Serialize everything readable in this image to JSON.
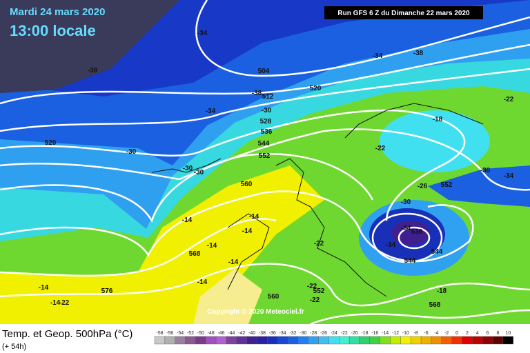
{
  "header": {
    "date": "Mardi 24 mars 2020",
    "time": "13:00 locale"
  },
  "run": "Run GFS 6 Z du Dimanche 22 mars 2020",
  "copyright": "Copyright © 2020 Meteociel.fr",
  "legend": {
    "title": "Temp. et Geop. 500hPa (°C)",
    "lead": "(+ 54h)",
    "values": [
      -58,
      -56,
      -54,
      -52,
      -50,
      -48,
      -46,
      -44,
      -42,
      -40,
      -38,
      -36,
      -34,
      -32,
      -30,
      -28,
      -26,
      -24,
      -22,
      -20,
      -18,
      -16,
      -14,
      -12,
      -10,
      -8,
      -6,
      -4,
      -2,
      0,
      2,
      4,
      6,
      8,
      10
    ],
    "colors": [
      "#c8c8c8",
      "#b0b0b0",
      "#9a80a0",
      "#8a5a90",
      "#7a3c88",
      "#a050c0",
      "#b060d0",
      "#8040a0",
      "#6030a0",
      "#402090",
      "#2820a0",
      "#1830b8",
      "#1848d0",
      "#1a60e0",
      "#2080f0",
      "#30a0f0",
      "#40c0f0",
      "#40e0f0",
      "#40f0d0",
      "#30e0a0",
      "#30d070",
      "#40d040",
      "#80e020",
      "#c0f000",
      "#f0f000",
      "#f0d000",
      "#f0b000",
      "#f09000",
      "#f06000",
      "#f03000",
      "#e00000",
      "#c00000",
      "#900000",
      "#600000",
      "#000000"
    ]
  },
  "contour_labels": [
    "-34",
    "-38",
    "504",
    "-34",
    "-38",
    "520",
    "-38",
    "512",
    "-30",
    "-34",
    "528",
    "536",
    "544",
    "552",
    "520",
    "-30",
    "-30",
    "-30",
    "-22",
    "-18",
    "-22",
    "-26",
    "552",
    "-30",
    "-34",
    "560",
    "-30",
    "-34",
    "536",
    "-34",
    "544",
    "544",
    "-14",
    "-14",
    "-14",
    "-14",
    "568",
    "-14",
    "-22",
    "-14",
    "-14",
    "576",
    "-14",
    "-22",
    "-22",
    "552",
    "-22",
    "560",
    "-18",
    "568"
  ]
}
